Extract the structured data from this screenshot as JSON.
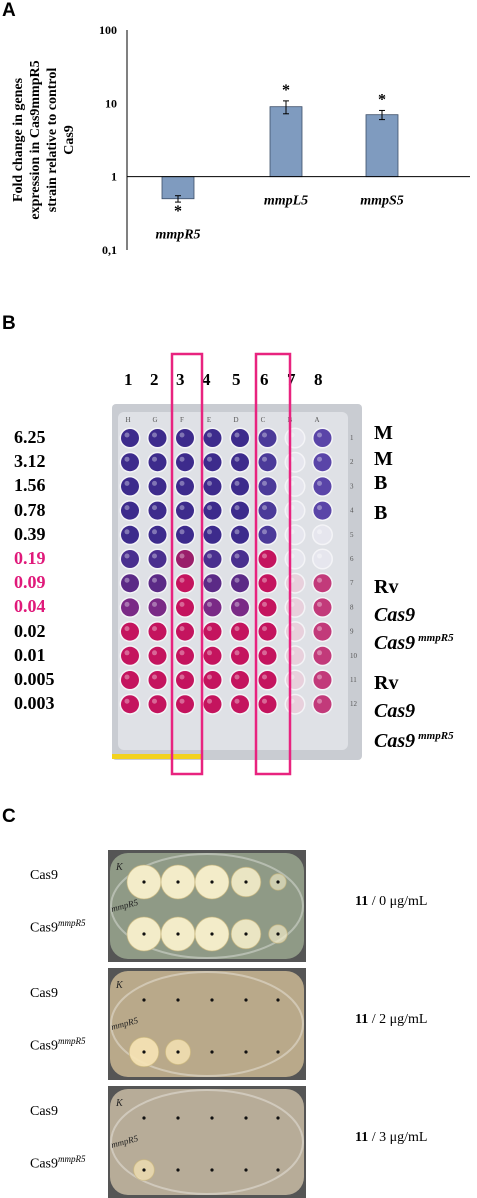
{
  "panelA": {
    "letter": "A",
    "ylabel_lines": [
      "Fold change in genes",
      "expression in Cas9mmpR5",
      "strain relative to control",
      "Cas9"
    ],
    "yticks": [
      "100",
      "10",
      "1",
      "0,1"
    ],
    "annotation": "*"
  },
  "chart_data": {
    "type": "bar",
    "categories": [
      "mmpR5",
      "mmpL5",
      "mmpS5"
    ],
    "values": [
      0.5,
      9.0,
      7.0
    ],
    "errors": [
      0.05,
      1.8,
      1.0
    ],
    "ylim": [
      0.1,
      100
    ],
    "yscale": "log",
    "baseline": 1,
    "bar_color": "#7f9bbf",
    "significance": [
      "*",
      "*",
      "*"
    ]
  },
  "panelB": {
    "letter": "B",
    "columns": [
      "1",
      "2",
      "3",
      "4",
      "5",
      "6",
      "7",
      "8"
    ],
    "plate_letters": [
      "H",
      "G",
      "F",
      "E",
      "D",
      "C",
      "B",
      "A"
    ],
    "plate_numbers": [
      "1",
      "2",
      "3",
      "4",
      "5",
      "6",
      "7",
      "8",
      "9",
      "10",
      "11",
      "12"
    ],
    "concentrations": [
      {
        "value": "6.25",
        "color": "#000000"
      },
      {
        "value": "3.12",
        "color": "#000000"
      },
      {
        "value": "1.56",
        "color": "#000000"
      },
      {
        "value": "0.78",
        "color": "#000000"
      },
      {
        "value": "0.39",
        "color": "#000000"
      },
      {
        "value": "0.19",
        "color": "#e0197a"
      },
      {
        "value": "0.09",
        "color": "#e0197a"
      },
      {
        "value": "0.04",
        "color": "#e0197a"
      },
      {
        "value": "0.02",
        "color": "#000000"
      },
      {
        "value": "0.01",
        "color": "#000000"
      },
      {
        "value": "0.005",
        "color": "#000000"
      },
      {
        "value": "0.003",
        "color": "#000000"
      }
    ],
    "right_labels": [
      {
        "text": "M",
        "italic": false,
        "sup": ""
      },
      {
        "text": "M",
        "italic": false,
        "sup": ""
      },
      {
        "text": "B",
        "italic": false,
        "sup": ""
      },
      {
        "text": "B",
        "italic": false,
        "sup": ""
      },
      {
        "text": "Rv",
        "italic": false,
        "sup": ""
      },
      {
        "text": "Cas9",
        "italic": true,
        "sup": ""
      },
      {
        "text": "Cas9",
        "italic": true,
        "sup": "mmpR5"
      },
      {
        "text": "Rv",
        "italic": false,
        "sup": ""
      },
      {
        "text": "Cas9",
        "italic": true,
        "sup": ""
      },
      {
        "text": "Cas9",
        "italic": true,
        "sup": "mmpR5"
      }
    ],
    "highlight_color": "#e8237f",
    "purple": "#3d2b8c",
    "pink": "#c4145e"
  },
  "panelC": {
    "letter": "C",
    "plates": [
      {
        "strain_top": "Cas9",
        "strain_bottom": "Cas9",
        "strain_bottom_sup": "mmpR5",
        "plate_mark_top": "K",
        "plate_mark_bottom": "mmpR5",
        "conc_bold": "11",
        "conc_rest": " / 0 μg/mL",
        "growth_top": [
          1,
          1,
          1,
          0.8,
          0.2
        ],
        "growth_bottom": [
          1,
          1,
          1,
          0.8,
          0.3
        ]
      },
      {
        "strain_top": "Cas9",
        "strain_bottom": "Cas9",
        "strain_bottom_sup": "mmpR5",
        "plate_mark_top": "K",
        "plate_mark_bottom": "mmpR5",
        "conc_bold": "11",
        "conc_rest": " / 2 μg/mL",
        "growth_top": [
          0,
          0,
          0,
          0,
          0
        ],
        "growth_bottom": [
          0.8,
          0.6,
          0,
          0,
          0
        ]
      },
      {
        "strain_top": "Cas9",
        "strain_bottom": "Cas9",
        "strain_bottom_sup": "mmpR5",
        "plate_mark_top": "K",
        "plate_mark_bottom": "mmpR5",
        "conc_bold": "11",
        "conc_rest": " / 3 μg/mL",
        "growth_top": [
          0,
          0,
          0,
          0,
          0
        ],
        "growth_bottom": [
          0.4,
          0,
          0,
          0,
          0
        ]
      }
    ]
  }
}
